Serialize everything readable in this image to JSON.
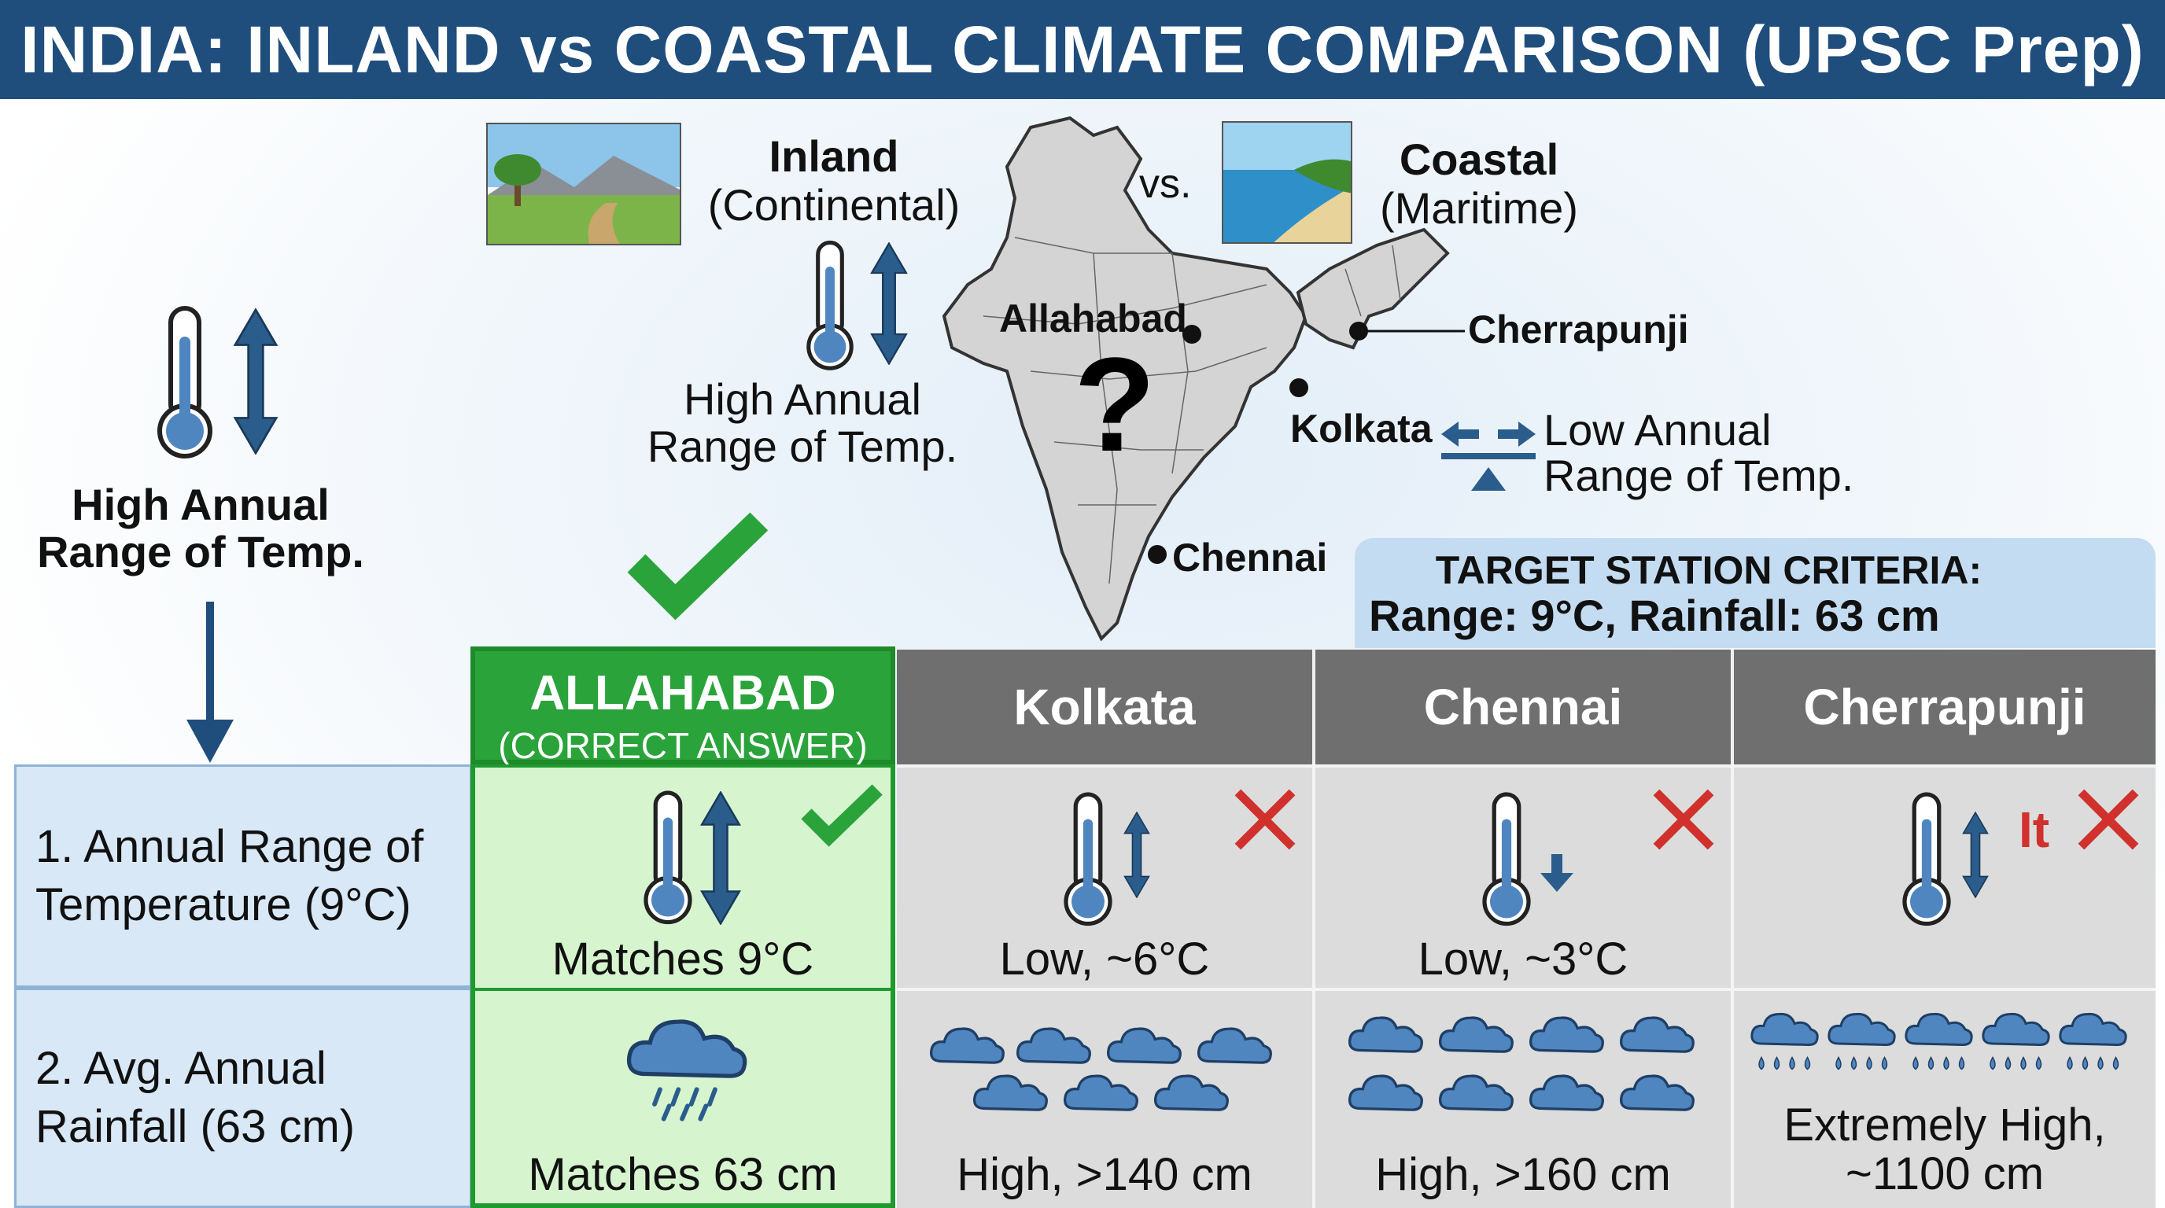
{
  "title": "INDIA: INLAND vs COASTAL CLIMATE COMPARISON (UPSC Prep)",
  "header": {
    "inland_title": "Inland",
    "inland_sub": "(Continental)",
    "vs": "vs.",
    "coastal_title": "Coastal",
    "coastal_sub": "(Maritime)",
    "inland_range_line1": "High Annual",
    "inland_range_line2": "Range of Temp.",
    "coastal_range_line1": "Low Annual",
    "coastal_range_line2": "Range of Temp."
  },
  "left_panel": {
    "line1": "High Annual",
    "line2": "Range of Temp."
  },
  "map": {
    "question_mark": "?",
    "cities": {
      "allahabad": "Allahabad",
      "kolkata": "Kolkata",
      "chennai": "Chennai",
      "cherrapunji": "Cherrapunji"
    }
  },
  "target": {
    "line1": "TARGET STATION CRITERIA:",
    "line2": "Range: 9°C, Rainfall: 63 cm"
  },
  "table": {
    "columns": {
      "allahabad": "ALLAHABAD",
      "allahabad_sub": "(CORRECT ANSWER)",
      "kolkata": "Kolkata",
      "chennai": "Chennai",
      "cherrapunji": "Cherrapunji"
    },
    "rows": {
      "temp_line1": "1. Annual Range of",
      "temp_line2": "Temperature (9°C)",
      "rain_line1": "2. Avg. Annual",
      "rain_line2": "Rainfall (63 cm)"
    },
    "temp": {
      "allahabad": "Matches 9°C",
      "kolkata": "Low, ~6°C",
      "chennai": "Low, ~3°C",
      "cherrapunji_mark": "It"
    },
    "rain": {
      "allahabad": "Matches 63 cm",
      "kolkata": "High, >140 cm",
      "chennai": "High, >160 cm",
      "cherrapunji_line1": "Extremely High,",
      "cherrapunji_line2": "~1100 cm"
    }
  },
  "colors": {
    "header_blue": "#1f4e7d",
    "correct_green": "#1f9a2e",
    "wrong_red": "#d0312d",
    "thermo_blue": "#4f86c0",
    "arrow_blue": "#2b5d8c"
  }
}
